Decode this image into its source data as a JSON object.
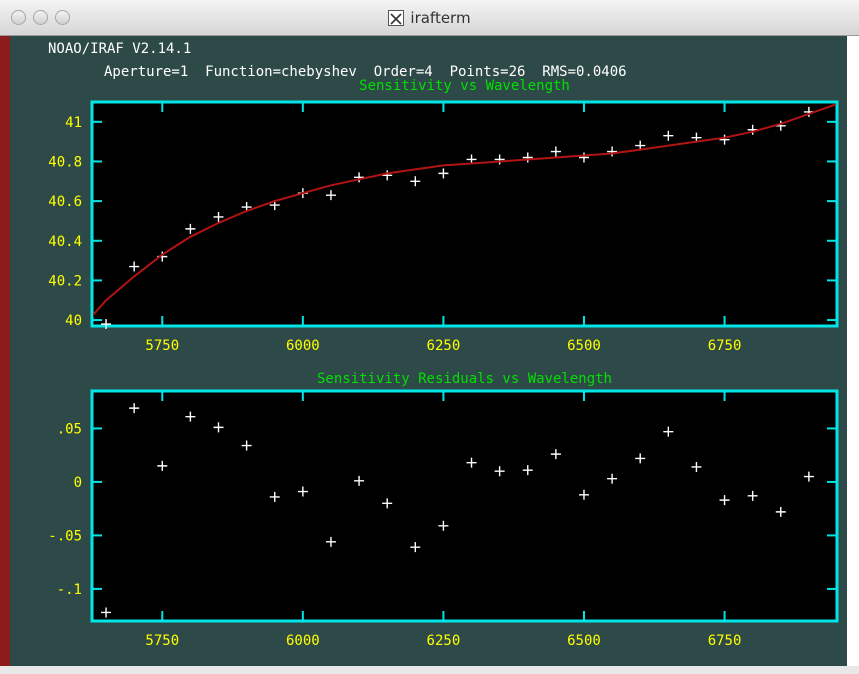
{
  "window": {
    "title": "irafterm"
  },
  "header": {
    "version": "NOAO/IRAF V2.14.1",
    "fit_info": "Aperture=1  Function=chebyshev  Order=4  Points=26  RMS=0.0406"
  },
  "colors": {
    "frame": "#00e5e5",
    "tick_label": "#ffff00",
    "title": "#00e000",
    "fit": "#b21414",
    "marker": "#ffffff",
    "plot_bg": "#000000"
  },
  "chart_data": [
    {
      "type": "scatter",
      "title": "Sensitivity vs Wavelength",
      "xlim": [
        5625,
        6950
      ],
      "ylim": [
        39.97,
        41.1
      ],
      "x_ticks": [
        5750,
        6000,
        6250,
        6500,
        6750
      ],
      "x_tick_labels": [
        "5750",
        "6000",
        "6250",
        "6500",
        "6750"
      ],
      "y_ticks": [
        40,
        40.2,
        40.4,
        40.6,
        40.8,
        41
      ],
      "y_tick_labels": [
        "40",
        "40.2",
        "40.4",
        "40.6",
        "40.8",
        "41"
      ],
      "series": [
        {
          "kind": "points",
          "x": [
            5650,
            5700,
            5750,
            5800,
            5850,
            5900,
            5950,
            6000,
            6050,
            6100,
            6150,
            6200,
            6250,
            6300,
            6350,
            6400,
            6450,
            6500,
            6550,
            6600,
            6650,
            6700,
            6750,
            6800,
            6850,
            6900
          ],
          "y": [
            39.98,
            40.27,
            40.32,
            40.46,
            40.52,
            40.57,
            40.58,
            40.64,
            40.63,
            40.72,
            40.73,
            40.7,
            40.74,
            40.81,
            40.81,
            40.82,
            40.85,
            40.82,
            40.85,
            40.88,
            40.93,
            40.92,
            40.91,
            40.96,
            40.98,
            41.05
          ]
        },
        {
          "kind": "line",
          "x": [
            5625,
            5650,
            5700,
            5750,
            5800,
            5850,
            5900,
            5950,
            6000,
            6050,
            6100,
            6150,
            6200,
            6250,
            6300,
            6350,
            6400,
            6450,
            6500,
            6550,
            6600,
            6650,
            6700,
            6750,
            6800,
            6850,
            6900,
            6950
          ],
          "y": [
            40.02,
            40.1,
            40.22,
            40.33,
            40.42,
            40.49,
            40.55,
            40.6,
            40.64,
            40.68,
            40.71,
            40.74,
            40.76,
            40.78,
            40.79,
            40.8,
            40.81,
            40.82,
            40.83,
            40.84,
            40.86,
            40.88,
            40.9,
            40.92,
            40.95,
            40.99,
            41.04,
            41.09
          ]
        }
      ]
    },
    {
      "type": "scatter",
      "title": "Sensitivity Residuals vs Wavelength",
      "xlim": [
        5625,
        6950
      ],
      "ylim": [
        -0.13,
        0.085
      ],
      "x_ticks": [
        5750,
        6000,
        6250,
        6500,
        6750
      ],
      "x_tick_labels": [
        "5750",
        "6000",
        "6250",
        "6500",
        "6750"
      ],
      "y_ticks": [
        -0.1,
        -0.05,
        0,
        0.05
      ],
      "y_tick_labels": [
        "-.1",
        "-.05",
        "0",
        ".05"
      ],
      "series": [
        {
          "kind": "points",
          "x": [
            5650,
            5700,
            5750,
            5800,
            5850,
            5900,
            5950,
            6000,
            6050,
            6100,
            6150,
            6200,
            6250,
            6300,
            6350,
            6400,
            6450,
            6500,
            6550,
            6600,
            6650,
            6700,
            6750,
            6800,
            6850,
            6900
          ],
          "y": [
            -0.122,
            0.069,
            0.015,
            0.061,
            0.051,
            0.034,
            -0.014,
            -0.009,
            -0.056,
            0.001,
            -0.02,
            -0.061,
            -0.041,
            0.018,
            0.01,
            0.011,
            0.026,
            -0.012,
            0.003,
            0.022,
            0.047,
            0.014,
            -0.017,
            -0.013,
            -0.028,
            0.005
          ]
        }
      ]
    }
  ]
}
